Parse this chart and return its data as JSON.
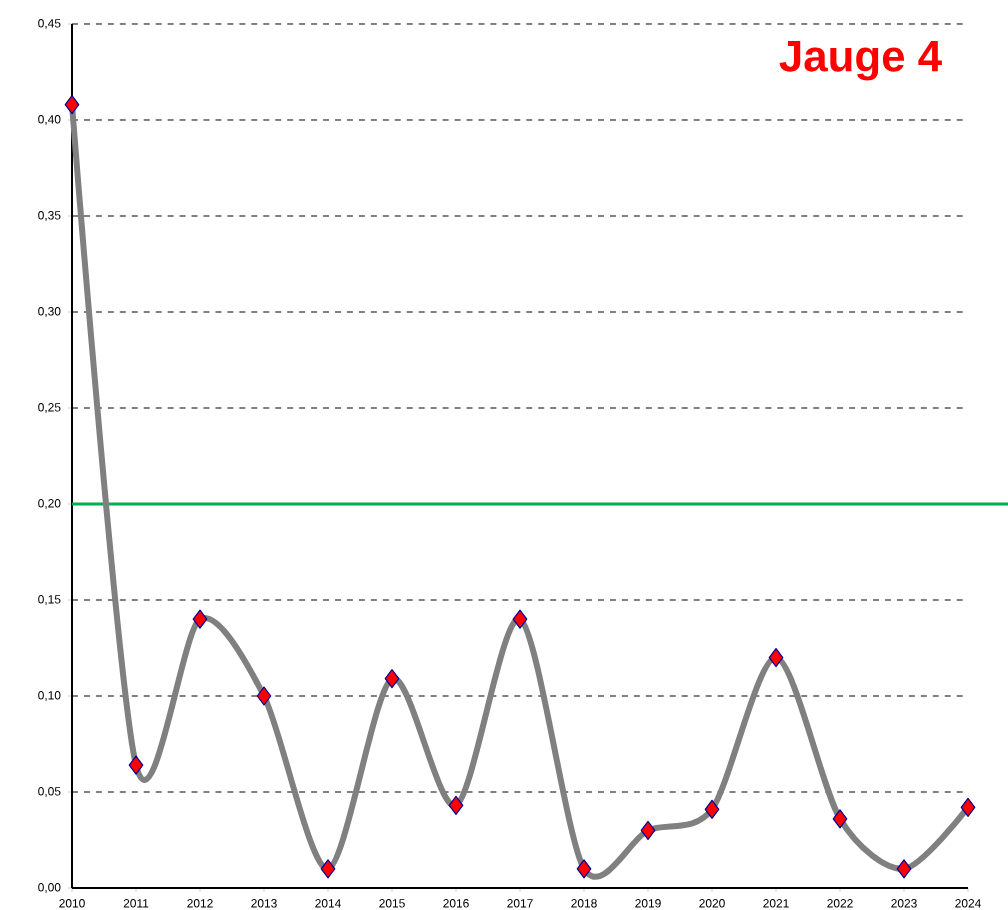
{
  "chart_data": {
    "type": "line",
    "title": "Jauge 4",
    "categories": [
      "2010",
      "2011",
      "2012",
      "2013",
      "2014",
      "2015",
      "2016",
      "2017",
      "2018",
      "2019",
      "2020",
      "2021",
      "2022",
      "2023",
      "2024"
    ],
    "series": [
      {
        "color": "#808080",
        "values": [
          0.408,
          0.064,
          0.14,
          0.1,
          0.01,
          0.109,
          0.043,
          0.14,
          0.01,
          0.03,
          0.041,
          0.12,
          0.036,
          0.01,
          0.042
        ]
      }
    ],
    "ylim": [
      0,
      0.45
    ],
    "yticks": [
      {
        "value": 0,
        "label": "0,00"
      },
      {
        "value": 0.05,
        "label": "0,05"
      },
      {
        "value": 0.1,
        "label": "0,10"
      },
      {
        "value": 0.15,
        "label": "0,15"
      },
      {
        "value": 0.2,
        "label": "0,20"
      },
      {
        "value": 0.25,
        "label": "0,25"
      },
      {
        "value": 0.3,
        "label": "0,30"
      },
      {
        "value": 0.35,
        "label": "0,35"
      },
      {
        "value": 0.4,
        "label": "0,40"
      },
      {
        "value": 0.45,
        "label": "0,45"
      }
    ],
    "ref_lines": [
      {
        "axis": "y",
        "value": 0.2,
        "color": "#00b050"
      }
    ],
    "grid": "y",
    "marker": "diamond",
    "line_style": "solid"
  }
}
